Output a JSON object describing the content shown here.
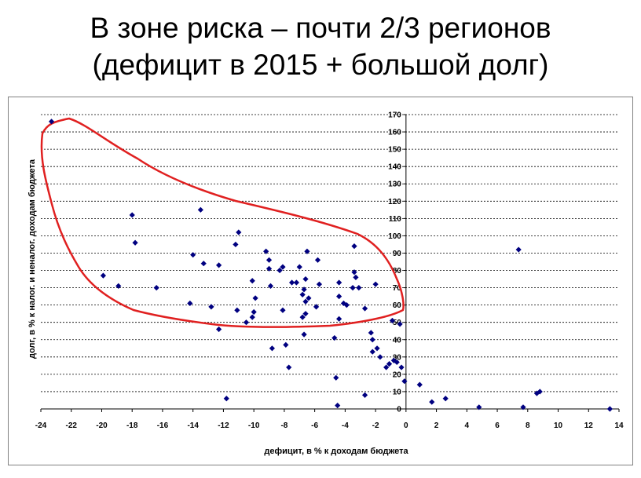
{
  "title": {
    "line1": "В зоне риска – почти 2/3 регионов",
    "line2": "(дефицит в 2015 + большой долг)"
  },
  "chart_data": {
    "type": "scatter",
    "xlabel": "дефицит, в % к доходам бюджета",
    "ylabel": "долг, в % к налог. и неналог. доходам бюджета",
    "xlim": [
      -24,
      14
    ],
    "ylim": [
      0,
      170
    ],
    "x_ticks": [
      "-24",
      "-22",
      "-20",
      "-18",
      "-16",
      "-14",
      "-12",
      "-10",
      "-8",
      "-6",
      "-4",
      "-2",
      "0",
      "2",
      "4",
      "6",
      "8",
      "10",
      "12",
      "14"
    ],
    "y_ticks": [
      "0",
      "10",
      "20",
      "30",
      "40",
      "50",
      "60",
      "70",
      "80",
      "90",
      "100",
      "110",
      "120",
      "130",
      "140",
      "150",
      "160",
      "170"
    ],
    "grid": "horizontal dashed",
    "marker_color": "#000080",
    "highlight_color": "#e02020",
    "series": [
      {
        "points": [
          [
            -23.3,
            166
          ],
          [
            -18.0,
            112
          ],
          [
            -17.8,
            96
          ],
          [
            -13.5,
            115
          ],
          [
            -11.0,
            102
          ],
          [
            -11.2,
            95
          ],
          [
            -19.9,
            77
          ],
          [
            -18.9,
            71
          ],
          [
            -16.4,
            70
          ],
          [
            -14.0,
            89
          ],
          [
            -13.3,
            84
          ],
          [
            -12.3,
            83
          ],
          [
            -14.2,
            61
          ],
          [
            -12.8,
            59
          ],
          [
            -12.3,
            46
          ],
          [
            -11.8,
            6
          ],
          [
            -11.1,
            57
          ],
          [
            -10.5,
            50
          ],
          [
            -10.1,
            74
          ],
          [
            -9.9,
            64
          ],
          [
            -10.0,
            56
          ],
          [
            -10.1,
            53
          ],
          [
            -9.2,
            91
          ],
          [
            -9.0,
            86
          ],
          [
            -9.0,
            81
          ],
          [
            -8.9,
            71
          ],
          [
            -8.3,
            80
          ],
          [
            -8.1,
            82
          ],
          [
            -8.1,
            57
          ],
          [
            -7.9,
            37
          ],
          [
            -8.8,
            35
          ],
          [
            -7.7,
            24
          ],
          [
            -7.5,
            73
          ],
          [
            -7.2,
            73
          ],
          [
            -7.0,
            82
          ],
          [
            -6.8,
            66
          ],
          [
            -6.7,
            69
          ],
          [
            -6.6,
            75
          ],
          [
            -6.6,
            62
          ],
          [
            -6.6,
            55
          ],
          [
            -6.8,
            53
          ],
          [
            -6.7,
            43
          ],
          [
            -6.5,
            91
          ],
          [
            -6.4,
            64
          ],
          [
            -5.9,
            59
          ],
          [
            -5.8,
            86
          ],
          [
            -5.7,
            72
          ],
          [
            -4.7,
            41
          ],
          [
            -4.6,
            18
          ],
          [
            -4.5,
            2
          ],
          [
            -4.4,
            73
          ],
          [
            -4.4,
            65
          ],
          [
            -4.4,
            52
          ],
          [
            -4.1,
            61
          ],
          [
            -3.9,
            60
          ],
          [
            -3.5,
            70
          ],
          [
            -3.4,
            79
          ],
          [
            -3.4,
            94
          ],
          [
            -3.3,
            76
          ],
          [
            -3.1,
            70
          ],
          [
            -2.7,
            58
          ],
          [
            -2.7,
            8
          ],
          [
            -2.3,
            44
          ],
          [
            -2.2,
            40
          ],
          [
            -2.2,
            33
          ],
          [
            -2.0,
            72
          ],
          [
            -1.9,
            35
          ],
          [
            -1.7,
            30
          ],
          [
            -1.3,
            24
          ],
          [
            -1.1,
            26
          ],
          [
            -0.9,
            51
          ],
          [
            -0.8,
            28
          ],
          [
            -0.6,
            27
          ],
          [
            -0.4,
            49
          ],
          [
            -0.3,
            24
          ],
          [
            -0.1,
            16
          ],
          [
            0.9,
            14
          ],
          [
            1.7,
            4
          ],
          [
            2.6,
            6
          ],
          [
            4.8,
            1
          ],
          [
            7.4,
            92
          ],
          [
            7.7,
            1
          ],
          [
            8.6,
            9
          ],
          [
            8.8,
            10
          ],
          [
            13.4,
            0
          ]
        ]
      }
    ]
  }
}
